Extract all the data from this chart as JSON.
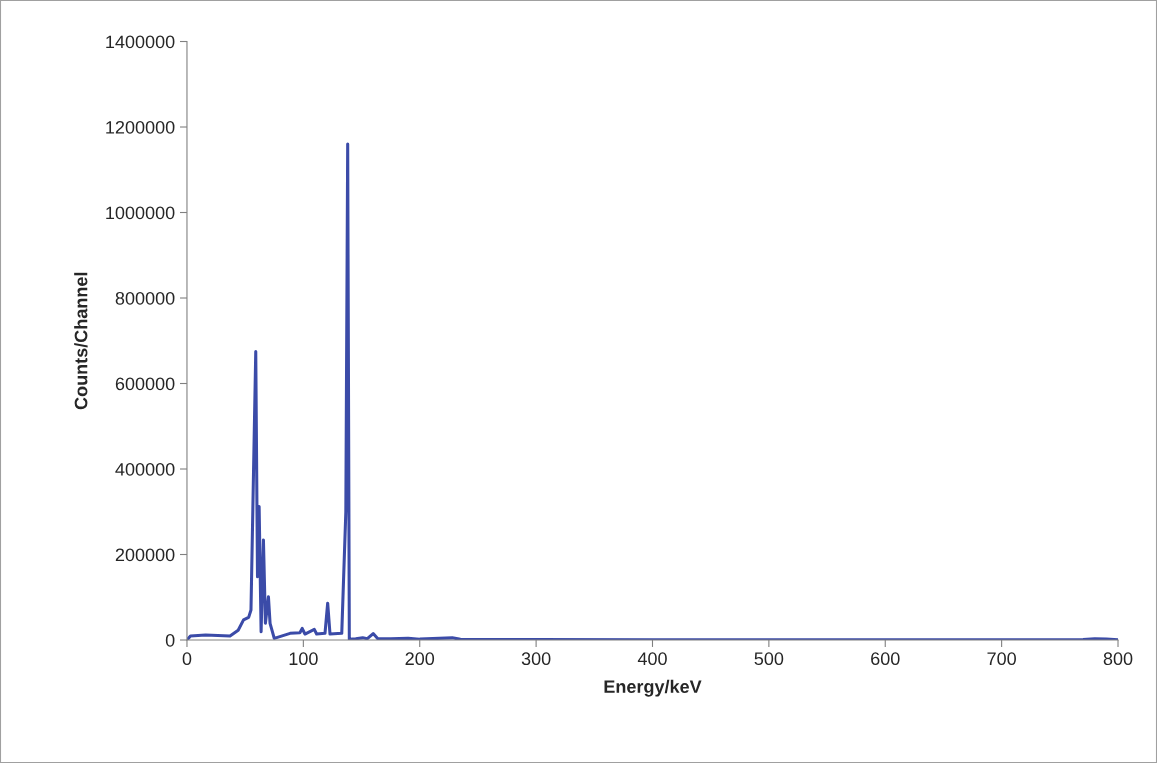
{
  "chart_data": {
    "type": "line",
    "xlabel": "Energy/keV",
    "ylabel": "Counts/Channel",
    "xlim": [
      0,
      800
    ],
    "xticks": [
      0,
      100,
      200,
      300,
      400,
      500,
      600,
      700,
      800
    ],
    "ylim": [
      0,
      1400000
    ],
    "yticks": [
      0,
      200000,
      400000,
      600000,
      800000,
      1000000,
      1200000,
      1400000
    ],
    "grid": false,
    "legend": false,
    "marker": "none",
    "line_style": "solid",
    "series": [
      {
        "color": "#3b4ba8",
        "x": [
          0,
          3,
          16,
          37,
          44,
          48.6,
          53,
          55,
          59.1,
          60.6,
          62,
          63.7,
          65.7,
          67.4,
          70,
          71.4,
          75,
          88.6,
          97,
          99,
          101.4,
          109.4,
          111.4,
          118.6,
          120.9,
          122.9,
          133,
          136.5,
          138.1,
          139.5,
          145,
          151,
          155,
          160,
          164,
          175,
          190,
          200,
          228,
          235,
          300,
          400,
          500,
          600,
          700,
          770,
          780,
          790,
          800
        ],
        "values": [
          0,
          9400,
          11700,
          9400,
          23000,
          47000,
          53000,
          70000,
          675000,
          148000,
          312000,
          19500,
          234000,
          39000,
          101000,
          39000,
          3900,
          15600,
          17000,
          27000,
          14000,
          25000,
          14000,
          15600,
          86000,
          14000,
          15600,
          300000,
          1160000,
          2000,
          3000,
          5000,
          3000,
          15000,
          3000,
          3000,
          4000,
          2000,
          5000,
          1500,
          1000,
          800,
          500,
          500,
          500,
          1000,
          3000,
          2000,
          500
        ]
      }
    ]
  }
}
